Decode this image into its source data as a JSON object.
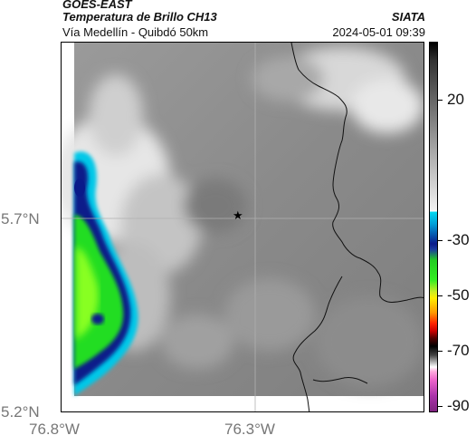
{
  "header": {
    "satellite": "GOES-EAST",
    "product": "Temperatura de Brillo CH13",
    "route": "Vía Medellín - Quibdó 50km",
    "org": "SIATA",
    "datetime": "2024-05-01 09:39"
  },
  "axes": {
    "lat_labels": [
      "5.7°N",
      "5.2°N"
    ],
    "lon_labels": [
      "76.8°W",
      "76.3°W"
    ]
  },
  "colorbar": {
    "ticks": [
      "20",
      "-30",
      "-50",
      "-70",
      "-90"
    ]
  },
  "marker": {
    "symbol": "★"
  },
  "colors": {
    "cold_green": "#22dd22",
    "cyan": "#00c8e8",
    "navy": "#0a1a8a",
    "gray_bg": "#8c8c8c"
  }
}
